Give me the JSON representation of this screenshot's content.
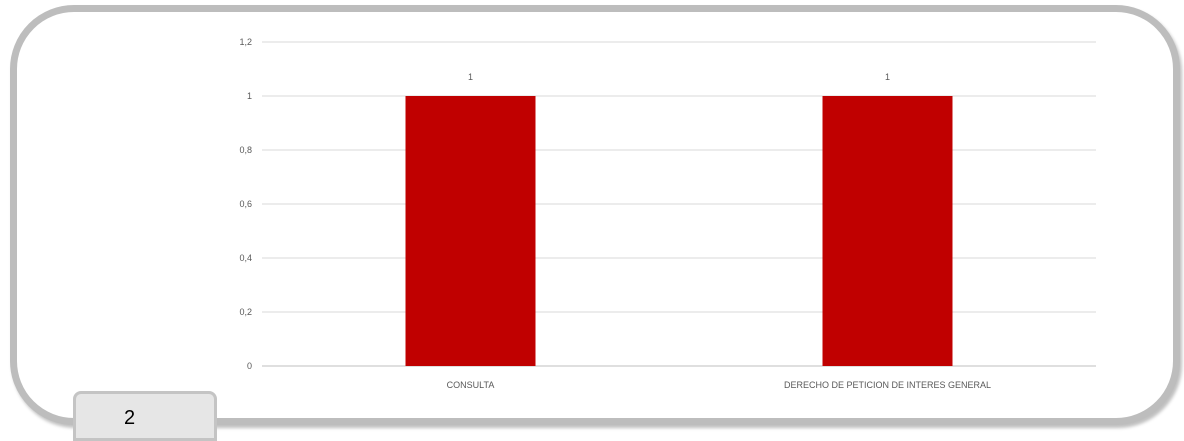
{
  "page_number": "2",
  "colors": {
    "bar": "#c00000",
    "gridline": "#d9d9d9",
    "text": "#595959",
    "frame": "#bdbdbd"
  },
  "chart_data": {
    "type": "bar",
    "title": "",
    "xlabel": "",
    "ylabel": "",
    "categories": [
      "CONSULTA",
      "DERECHO DE PETICION DE INTERES GENERAL"
    ],
    "values": [
      1,
      1
    ],
    "data_labels": [
      "1",
      "1"
    ],
    "ylim": [
      0,
      1.2
    ],
    "yticks": [
      "0",
      "0,2",
      "0,4",
      "0,6",
      "0,8",
      "1",
      "1,2"
    ],
    "grid": true,
    "legend": "none"
  }
}
